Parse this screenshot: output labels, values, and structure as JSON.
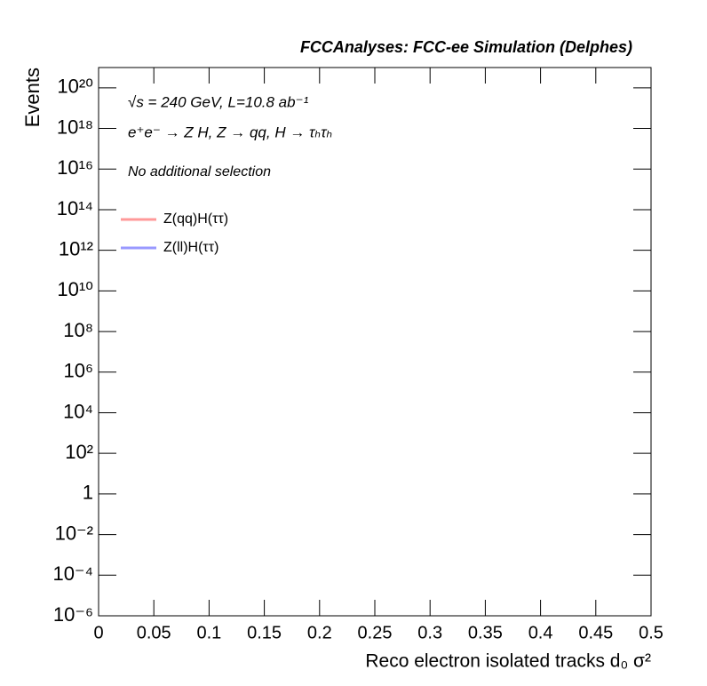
{
  "chart_data": {
    "type": "histogram",
    "title": "FCCAnalyses: FCC-ee Simulation (Delphes)",
    "annotations": [
      "√s = 240 GeV, L=10.8 ab⁻¹",
      "e⁺e⁻ → Z H, Z → qq, H → τₕτₕ",
      "No additional selection"
    ],
    "xlabel": "Reco electron isolated tracks d₀ σ²",
    "ylabel": "Events",
    "xlim": [
      0,
      0.5
    ],
    "xticks": [
      0,
      0.05,
      0.1,
      0.15,
      0.2,
      0.25,
      0.3,
      0.35,
      0.4,
      0.45,
      0.5
    ],
    "ylim": [
      1e-06,
      1e+21
    ],
    "log_y": true,
    "yticks": [
      {
        "value": 1e-06,
        "label": "10⁻⁶"
      },
      {
        "value": 0.0001,
        "label": "10⁻⁴"
      },
      {
        "value": 0.01,
        "label": "10⁻²"
      },
      1,
      {
        "value": 100,
        "label": "10²"
      },
      {
        "value": 10000,
        "label": "10⁴"
      },
      {
        "value": 1000000.0,
        "label": "10⁶"
      },
      {
        "value": 100000000.0,
        "label": "10⁸"
      },
      {
        "value": 10000000000.0,
        "label": "10¹⁰"
      },
      {
        "value": 1000000000000.0,
        "label": "10¹²"
      },
      {
        "value": 100000000000000.0,
        "label": "10¹⁴"
      },
      {
        "value": 1e+16,
        "label": "10¹⁶"
      },
      {
        "value": 1e+18,
        "label": "10¹⁸"
      },
      {
        "value": 1e+20,
        "label": "10²⁰"
      }
    ],
    "legend": "upper-left",
    "series": [
      {
        "name": "Z(qq)H(ττ)",
        "color": "#ff9999",
        "values": []
      },
      {
        "name": "Z(ll)H(ττ)",
        "color": "#9999ff",
        "values": []
      }
    ]
  }
}
